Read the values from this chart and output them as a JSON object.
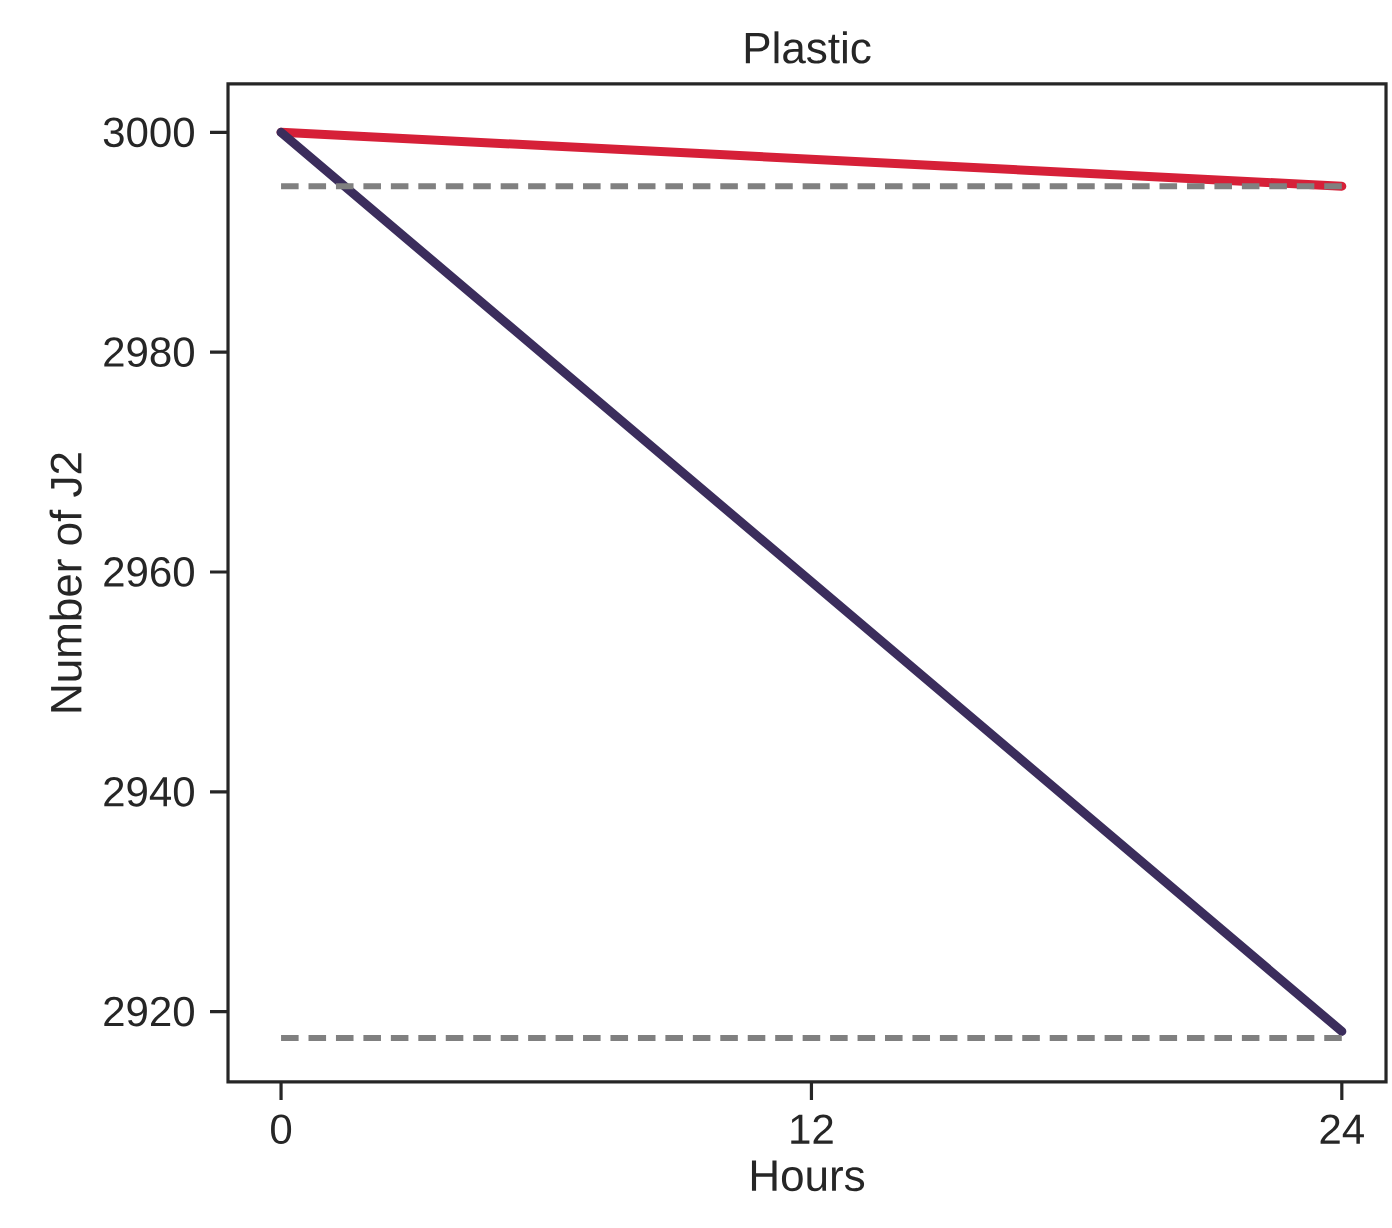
{
  "chart_data": {
    "type": "line",
    "title": "Plastic",
    "xlabel": "Hours",
    "ylabel": "Number of J2",
    "x": [
      0,
      24
    ],
    "series": [
      {
        "color": "#d62038",
        "values": [
          3000,
          2995.1
        ]
      },
      {
        "color": "#3b2d5c",
        "values": [
          3000,
          2918.2
        ]
      },
      {
        "color": "#808080",
        "values": [
          2995.1,
          2995.1
        ],
        "line_style": "dashed"
      },
      {
        "color": "#808080",
        "values": [
          2917.6,
          2917.6
        ],
        "line_style": "dashed"
      }
    ],
    "xlim": [
      -1.2,
      25
    ],
    "ylim": [
      2913.6,
      3004.4
    ],
    "xticks": [
      0,
      12,
      24
    ],
    "yticks": [
      2920,
      2940,
      2960,
      2980,
      3000
    ],
    "grid": false,
    "marker": "none",
    "line_style": "solid"
  }
}
